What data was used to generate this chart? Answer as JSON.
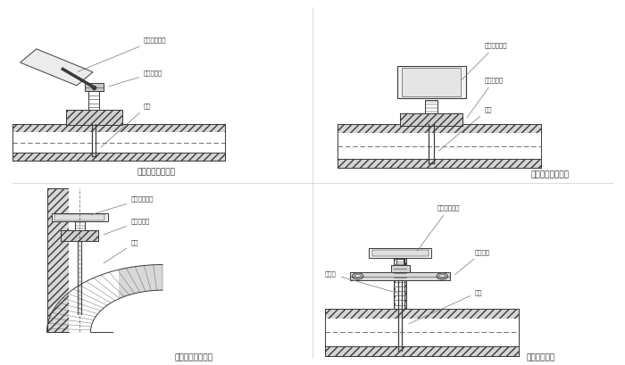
{
  "bg_color": "#ffffff",
  "line_color": "#3a3a3a",
  "text_color": "#333333",
  "hatch_pattern": "////",
  "hatch_color": "#aaaaaa",
  "panels": {
    "top_left": {
      "title": "垂直管道安装方法",
      "labels": [
        "双金属温度计",
        "直形连接头",
        "管道"
      ]
    },
    "top_right": {
      "title": "垂直管道安装方法",
      "labels": [
        "双金属温度计",
        "直形连接头",
        "管道"
      ]
    },
    "bot_left": {
      "title": "弯曲管道安装方法",
      "labels": [
        "双金属温度计",
        "直形连接头",
        "管道"
      ]
    },
    "bot_right": {
      "title": "法兰安装方法",
      "labels": [
        "双金属温度计",
        "安装法兰",
        "支撑管",
        "管道"
      ]
    }
  }
}
